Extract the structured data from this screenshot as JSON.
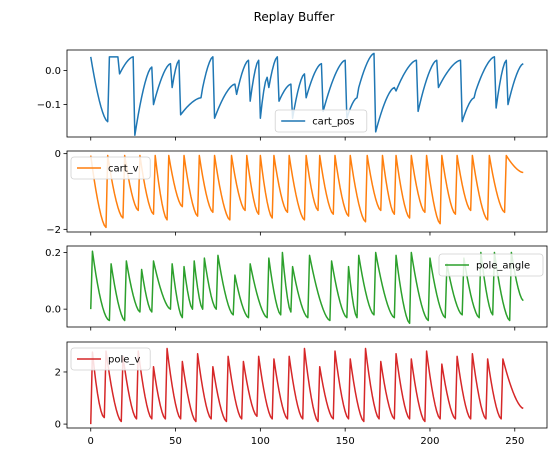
{
  "title": "Replay Buffer",
  "chart_data": {
    "type": "line",
    "title": "Replay Buffer",
    "xlim": [
      -14,
      269
    ],
    "x_ticks": [
      0,
      50,
      100,
      150,
      200,
      250
    ],
    "x_tick_labels": [
      "0",
      "50",
      "100",
      "150",
      "200",
      "250"
    ],
    "x_count": 256,
    "subplots": [
      {
        "name": "cart_pos",
        "color": "#1f77b4",
        "ylim": [
          -0.195,
          0.06
        ],
        "y_ticks": [
          0.0,
          -0.1
        ],
        "y_tick_labels": [
          "0.0",
          "−0.1"
        ],
        "legend_loc": "lower-center",
        "resets": [
          0,
          11,
          17,
          26,
          37,
          48,
          53,
          66,
          73,
          86,
          94,
          100,
          105,
          111,
          119,
          127,
          137,
          151,
          158,
          168,
          180,
          193,
          205,
          219,
          227,
          239,
          246,
          256
        ],
        "segment_curves": [
          [
            0.04,
            -0.15
          ],
          [
            0.04,
            0.04
          ],
          [
            -0.01,
            0.04
          ],
          [
            -0.19,
            0.01
          ],
          [
            -0.1,
            0.02
          ],
          [
            -0.05,
            0.03
          ],
          [
            -0.13,
            -0.08
          ],
          [
            -0.05,
            0.04
          ],
          [
            -0.14,
            -0.04
          ],
          [
            -0.07,
            0.03
          ],
          [
            -0.09,
            0.03
          ],
          [
            -0.14,
            -0.02
          ],
          [
            -0.05,
            0.04
          ],
          [
            -0.09,
            -0.04
          ],
          [
            -0.14,
            -0.01
          ],
          [
            -0.08,
            0.02
          ],
          [
            -0.12,
            0.03
          ],
          [
            -0.14,
            -0.08
          ],
          [
            -0.05,
            0.05
          ],
          [
            -0.18,
            -0.05
          ],
          [
            -0.06,
            0.03
          ],
          [
            -0.12,
            0.03
          ],
          [
            -0.05,
            0.03
          ],
          [
            -0.15,
            -0.08
          ],
          [
            -0.06,
            0.04
          ],
          [
            -0.11,
            0.03
          ],
          [
            -0.1,
            0.02
          ]
        ]
      },
      {
        "name": "cart_v",
        "color": "#ff7f0e",
        "ylim": [
          -2.07,
          0.07
        ],
        "y_ticks": [
          0,
          -2
        ],
        "y_tick_labels": [
          "0",
          "−2"
        ],
        "legend_loc": "upper-left",
        "resets": [
          0,
          10,
          20,
          29,
          38,
          46,
          55,
          64,
          73,
          83,
          92,
          100,
          108,
          117,
          127,
          135,
          144,
          153,
          163,
          172,
          180,
          189,
          198,
          207,
          216,
          225,
          235,
          245,
          256
        ],
        "segment_curves": [
          [
            -0.05,
            -1.95
          ],
          [
            -0.05,
            -1.7
          ],
          [
            -0.05,
            -1.5
          ],
          [
            -0.05,
            -1.6
          ],
          [
            -0.05,
            -1.75
          ],
          [
            -0.05,
            -1.4
          ],
          [
            -0.05,
            -1.65
          ],
          [
            -0.05,
            -1.55
          ],
          [
            -0.05,
            -1.75
          ],
          [
            -0.05,
            -1.5
          ],
          [
            -0.05,
            -1.6
          ],
          [
            -0.05,
            -1.7
          ],
          [
            -0.05,
            -1.55
          ],
          [
            -0.05,
            -1.75
          ],
          [
            -0.05,
            -1.5
          ],
          [
            -0.05,
            -1.6
          ],
          [
            -0.05,
            -1.65
          ],
          [
            -0.05,
            -1.8
          ],
          [
            -0.05,
            -1.5
          ],
          [
            -0.05,
            -1.6
          ],
          [
            -0.05,
            -1.7
          ],
          [
            -0.05,
            -1.55
          ],
          [
            -0.05,
            -1.85
          ],
          [
            -0.05,
            -1.6
          ],
          [
            -0.05,
            -1.5
          ],
          [
            -0.05,
            -1.75
          ],
          [
            -0.05,
            -1.55
          ],
          [
            -0.05,
            -0.5
          ]
        ]
      },
      {
        "name": "pole_angle",
        "color": "#2ca02c",
        "ylim": [
          -0.063,
          0.223
        ],
        "y_ticks": [
          0.2,
          0.0
        ],
        "y_tick_labels": [
          "0.2",
          "0.0"
        ],
        "legend_loc": "upper-right",
        "resets": [
          0,
          12,
          21,
          30,
          37,
          48,
          55,
          61,
          67,
          75,
          85,
          94,
          105,
          113,
          119,
          129,
          142,
          152,
          158,
          168,
          180,
          189,
          200,
          210,
          220,
          230,
          238,
          248,
          256
        ],
        "segment_curves": [
          [
            0.0,
            0.21,
            -0.04
          ],
          [
            0.16,
            -0.04
          ],
          [
            0.17,
            -0.01
          ],
          [
            0.14,
            -0.01
          ],
          [
            0.17,
            0.0
          ],
          [
            0.16,
            -0.03
          ],
          [
            0.15,
            0.0
          ],
          [
            0.17,
            0.0
          ],
          [
            0.18,
            0.0
          ],
          [
            0.19,
            -0.02
          ],
          [
            0.12,
            -0.03
          ],
          [
            0.16,
            -0.03
          ],
          [
            0.18,
            -0.02
          ],
          [
            0.2,
            -0.01
          ],
          [
            0.15,
            -0.03
          ],
          [
            0.19,
            -0.04
          ],
          [
            0.17,
            -0.03
          ],
          [
            0.15,
            -0.03
          ],
          [
            0.19,
            -0.02
          ],
          [
            0.2,
            -0.03
          ],
          [
            0.19,
            -0.05
          ],
          [
            0.2,
            -0.04
          ],
          [
            0.18,
            -0.03
          ],
          [
            0.16,
            -0.02
          ],
          [
            0.18,
            -0.03
          ],
          [
            0.2,
            -0.02
          ],
          [
            0.2,
            -0.04
          ],
          [
            0.2,
            0.03
          ]
        ]
      },
      {
        "name": "pole_v",
        "color": "#d62728",
        "ylim": [
          -0.15,
          3.15
        ],
        "y_ticks": [
          2,
          0
        ],
        "y_tick_labels": [
          "2",
          "0"
        ],
        "legend_loc": "upper-left",
        "resets": [
          0,
          9,
          19,
          28,
          37,
          45,
          54,
          63,
          72,
          81,
          90,
          99,
          108,
          117,
          126,
          135,
          144,
          153,
          162,
          171,
          180,
          189,
          198,
          207,
          216,
          225,
          234,
          243,
          256
        ],
        "segment_curves": [
          [
            0.0,
            3.0,
            0.25
          ],
          [
            2.8,
            0.1
          ],
          [
            2.6,
            0.2
          ],
          [
            2.8,
            0.2
          ],
          [
            2.2,
            0.2
          ],
          [
            2.9,
            0.2
          ],
          [
            2.4,
            0.1
          ],
          [
            2.7,
            0.2
          ],
          [
            2.2,
            0.1
          ],
          [
            2.6,
            0.2
          ],
          [
            2.4,
            0.3
          ],
          [
            2.6,
            0.2
          ],
          [
            2.5,
            0.2
          ],
          [
            2.6,
            0.2
          ],
          [
            2.9,
            0.1
          ],
          [
            2.2,
            0.2
          ],
          [
            2.8,
            0.2
          ],
          [
            2.5,
            0.1
          ],
          [
            2.9,
            0.2
          ],
          [
            2.4,
            0.2
          ],
          [
            2.7,
            0.2
          ],
          [
            2.5,
            0.1
          ],
          [
            2.8,
            0.2
          ],
          [
            2.3,
            0.2
          ],
          [
            2.6,
            0.2
          ],
          [
            2.7,
            0.2
          ],
          [
            2.5,
            0.2
          ],
          [
            2.5,
            0.6
          ]
        ]
      }
    ]
  }
}
